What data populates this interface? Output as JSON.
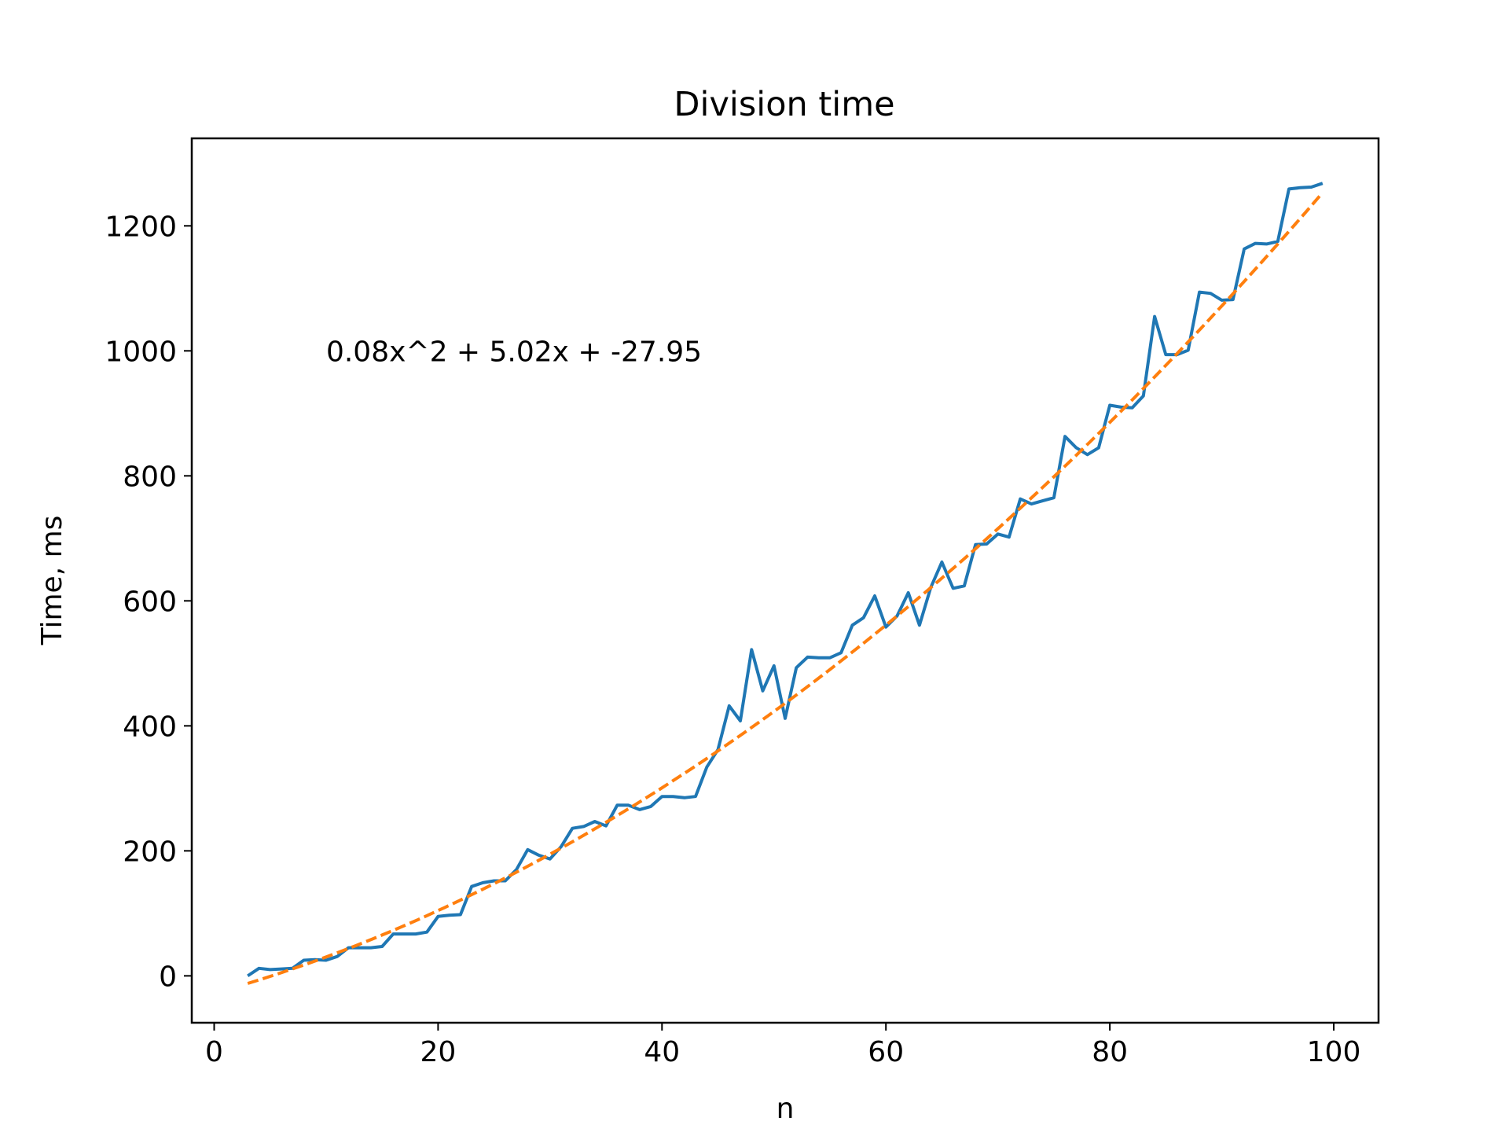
{
  "chart_data": {
    "type": "line",
    "title": "Division time",
    "xlabel": "n",
    "ylabel": "Time, ms",
    "xlim": [
      -2,
      104
    ],
    "ylim": [
      -75,
      1340
    ],
    "xticks": [
      0,
      20,
      40,
      60,
      80,
      100
    ],
    "yticks": [
      0,
      200,
      400,
      600,
      800,
      1000,
      1200
    ],
    "grid": false,
    "legend": "none",
    "annotation": {
      "text": "0.08x^2 + 5.02x + -27.95",
      "x": 10,
      "y": 1000
    },
    "series": [
      {
        "style": "solid",
        "color": "#1f77b4",
        "x": [
          3,
          4,
          5,
          6,
          7,
          8,
          9,
          10,
          11,
          12,
          13,
          14,
          15,
          16,
          17,
          18,
          19,
          20,
          21,
          22,
          23,
          24,
          25,
          26,
          27,
          28,
          29,
          30,
          31,
          32,
          33,
          34,
          35,
          36,
          37,
          38,
          39,
          40,
          41,
          42,
          43,
          44,
          45,
          46,
          47,
          48,
          49,
          50,
          51,
          52,
          53,
          54,
          55,
          56,
          57,
          58,
          59,
          60,
          61,
          62,
          63,
          64,
          65,
          66,
          67,
          68,
          69,
          70,
          71,
          72,
          73,
          74,
          75,
          76,
          77,
          78,
          79,
          80,
          81,
          82,
          83,
          84,
          85,
          86,
          87,
          88,
          89,
          90,
          91,
          92,
          93,
          94,
          95,
          96,
          97,
          98,
          99
        ],
        "y": [
          0,
          12,
          10,
          11,
          12,
          25,
          26,
          25,
          31,
          45,
          45,
          45,
          47,
          67,
          67,
          67,
          70,
          95,
          97,
          98,
          143,
          149,
          152,
          152,
          170,
          202,
          193,
          187,
          207,
          236,
          239,
          247,
          240,
          273,
          273,
          266,
          271,
          287,
          287,
          285,
          287,
          334,
          362,
          432,
          408,
          522,
          456,
          496,
          412,
          493,
          510,
          509,
          509,
          517,
          561,
          573,
          608,
          558,
          576,
          613,
          561,
          621,
          662,
          620,
          624,
          690,
          691,
          707,
          702,
          763,
          755,
          760,
          765,
          863,
          845,
          834,
          845,
          913,
          910,
          909,
          928,
          1055,
          994,
          994,
          1001,
          1094,
          1092,
          1081,
          1082,
          1163,
          1172,
          1171,
          1175,
          1259,
          1261,
          1262,
          1268
        ]
      },
      {
        "style": "dashed",
        "color": "#ff7f0e",
        "fit": {
          "a": 0.08,
          "b": 5.02,
          "c": -27.95
        },
        "x_range": [
          3,
          99
        ]
      }
    ]
  }
}
